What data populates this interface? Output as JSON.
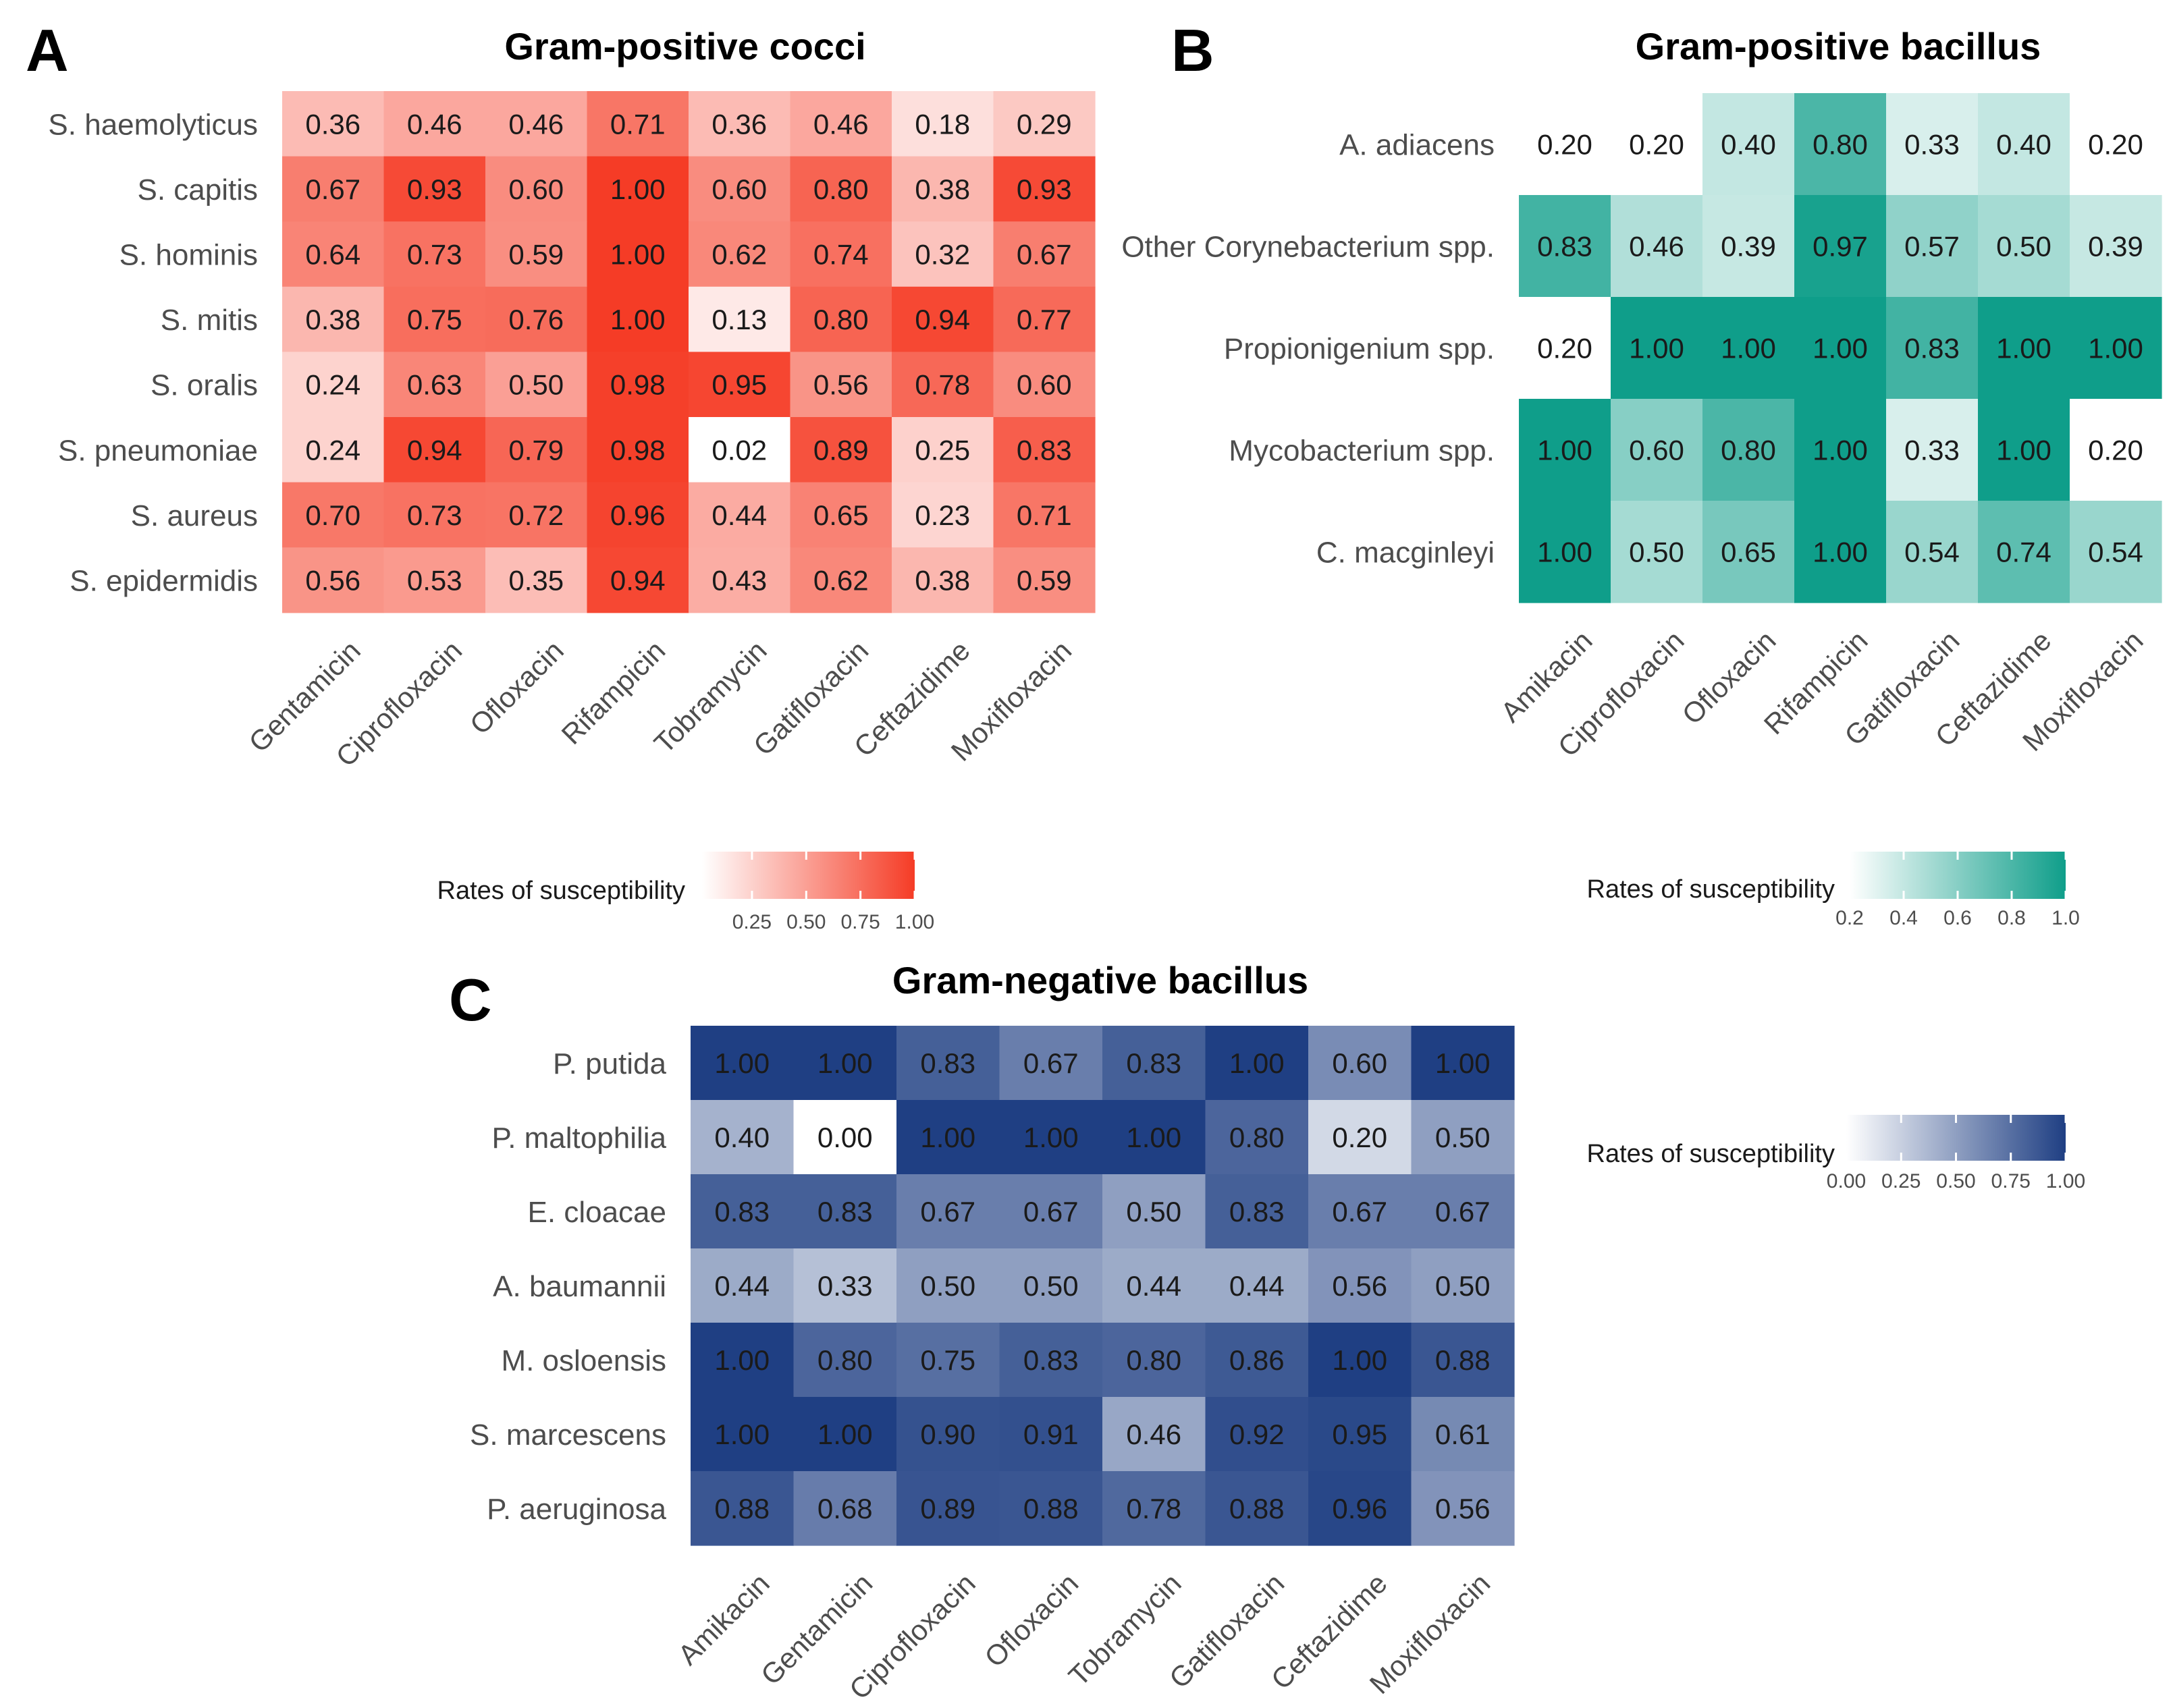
{
  "chart_data": [
    {
      "type": "heatmap",
      "letter": "A",
      "title": "Gram-positive cocci",
      "rows": [
        "S. haemolyticus",
        "S. capitis",
        "S. hominis",
        "S. mitis",
        "S. oralis",
        "S. pneumoniae",
        "S. aureus",
        "S. epidermidis"
      ],
      "columns": [
        "Gentamicin",
        "Ciprofloxacin",
        "Ofloxacin",
        "Rifampicin",
        "Tobramycin",
        "Gatifloxacin",
        "Ceftazidime",
        "Moxifloxacin"
      ],
      "values": [
        [
          0.36,
          0.46,
          0.46,
          0.71,
          0.36,
          0.46,
          0.18,
          0.29
        ],
        [
          0.67,
          0.93,
          0.6,
          1.0,
          0.6,
          0.8,
          0.38,
          0.93
        ],
        [
          0.64,
          0.73,
          0.59,
          1.0,
          0.62,
          0.74,
          0.32,
          0.67
        ],
        [
          0.38,
          0.75,
          0.76,
          1.0,
          0.13,
          0.8,
          0.94,
          0.77
        ],
        [
          0.24,
          0.63,
          0.5,
          0.98,
          0.95,
          0.56,
          0.78,
          0.6
        ],
        [
          0.24,
          0.94,
          0.79,
          0.98,
          0.02,
          0.89,
          0.25,
          0.83
        ],
        [
          0.7,
          0.73,
          0.72,
          0.96,
          0.44,
          0.65,
          0.23,
          0.71
        ],
        [
          0.56,
          0.53,
          0.35,
          0.94,
          0.43,
          0.62,
          0.38,
          0.59
        ]
      ],
      "color_low": "#ffffff",
      "color_high": "#f53c26",
      "scale_min": 0.02,
      "scale_max": 1.0,
      "legend": {
        "title": "Rates of susceptibility",
        "ticks": [
          0.25,
          0.5,
          0.75,
          1.0
        ],
        "tick_labels": [
          "0.25",
          "0.50",
          "0.75",
          "1.00"
        ]
      }
    },
    {
      "type": "heatmap",
      "letter": "B",
      "title": "Gram-positive bacillus",
      "rows": [
        "A. adiacens",
        "Other Corynebacterium spp.",
        "Propionigenium spp.",
        "Mycobacterium spp.",
        "C. macginleyi"
      ],
      "columns": [
        "Amikacin",
        "Ciprofloxacin",
        "Ofloxacin",
        "Rifampicin",
        "Gatifloxacin",
        "Ceftazidime",
        "Moxifloxacin"
      ],
      "values": [
        [
          0.2,
          0.2,
          0.4,
          0.8,
          0.33,
          0.4,
          0.2
        ],
        [
          0.83,
          0.46,
          0.39,
          0.97,
          0.57,
          0.5,
          0.39
        ],
        [
          0.2,
          1.0,
          1.0,
          1.0,
          0.83,
          1.0,
          1.0
        ],
        [
          1.0,
          0.6,
          0.8,
          1.0,
          0.33,
          1.0,
          0.2
        ],
        [
          1.0,
          0.5,
          0.65,
          1.0,
          0.54,
          0.74,
          0.54
        ]
      ],
      "color_low": "#ffffff",
      "color_high": "#0f9e8a",
      "scale_min": 0.2,
      "scale_max": 1.0,
      "legend": {
        "title": "Rates of susceptibility",
        "ticks": [
          0.2,
          0.4,
          0.6,
          0.8,
          1.0
        ],
        "tick_labels": [
          "0.2",
          "0.4",
          "0.6",
          "0.8",
          "1.0"
        ]
      }
    },
    {
      "type": "heatmap",
      "letter": "C",
      "title": "Gram-negative bacillus",
      "rows": [
        "P. putida",
        "P. maltophilia",
        "E. cloacae",
        "A. baumannii",
        "M. osloensis",
        "S. marcescens",
        "P. aeruginosa"
      ],
      "columns": [
        "Amikacin",
        "Gentamicin",
        "Ciprofloxacin",
        "Ofloxacin",
        "Tobramycin",
        "Gatifloxacin",
        "Ceftazidime",
        "Moxifloxacin"
      ],
      "values": [
        [
          1.0,
          1.0,
          0.83,
          0.67,
          0.83,
          1.0,
          0.6,
          1.0
        ],
        [
          0.4,
          0.0,
          1.0,
          1.0,
          1.0,
          0.8,
          0.2,
          0.5
        ],
        [
          0.83,
          0.83,
          0.67,
          0.67,
          0.5,
          0.83,
          0.67,
          0.67
        ],
        [
          0.44,
          0.33,
          0.5,
          0.5,
          0.44,
          0.44,
          0.56,
          0.5
        ],
        [
          1.0,
          0.8,
          0.75,
          0.83,
          0.8,
          0.86,
          1.0,
          0.88
        ],
        [
          1.0,
          1.0,
          0.9,
          0.91,
          0.46,
          0.92,
          0.95,
          0.61
        ],
        [
          0.88,
          0.68,
          0.89,
          0.88,
          0.78,
          0.88,
          0.96,
          0.56
        ]
      ],
      "color_low": "#ffffff",
      "color_high": "#1f3f83",
      "scale_min": 0.0,
      "scale_max": 1.0,
      "legend": {
        "title": "Rates of susceptibility",
        "ticks": [
          0.0,
          0.25,
          0.5,
          0.75,
          1.0
        ],
        "tick_labels": [
          "0.00",
          "0.25",
          "0.50",
          "0.75",
          "1.00"
        ]
      }
    }
  ]
}
